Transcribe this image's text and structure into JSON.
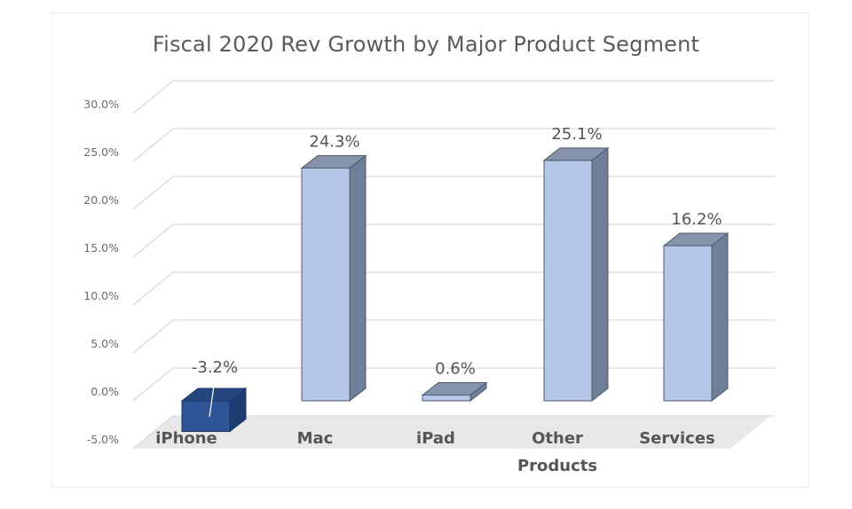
{
  "chart_data": {
    "type": "bar",
    "style": "3d-column",
    "title": "Fiscal 2020 Rev Growth by Major Product Segment",
    "xlabel": "",
    "ylabel": "",
    "categories": [
      [
        "iPhone"
      ],
      [
        "Mac"
      ],
      [
        "iPad"
      ],
      [
        "Other",
        "Products"
      ],
      [
        "Services"
      ]
    ],
    "values": [
      -3.2,
      24.3,
      0.6,
      25.1,
      16.2
    ],
    "data_labels": [
      "-3.2%",
      "24.3%",
      "0.6%",
      "25.1%",
      "16.2%"
    ],
    "ylim": [
      -5,
      30
    ],
    "yticks": [
      30,
      25,
      20,
      15,
      10,
      5,
      0,
      -5
    ],
    "ytick_labels": [
      "30.0%",
      "25.0%",
      "20.0%",
      "15.0%",
      "10.0%",
      "5.0%",
      "0.0%",
      "-5.0%"
    ],
    "grid": true,
    "legend": "none",
    "colors": {
      "positive_front": "#b4c7e7",
      "positive_side": "#6f7f98",
      "positive_top": "#8594ab",
      "negative_front": "#2f5597",
      "negative_side": "#1f3c6e",
      "negative_top": "#24477f",
      "gridline": "#d9d9d9",
      "floor": "#e8e8e8"
    }
  }
}
